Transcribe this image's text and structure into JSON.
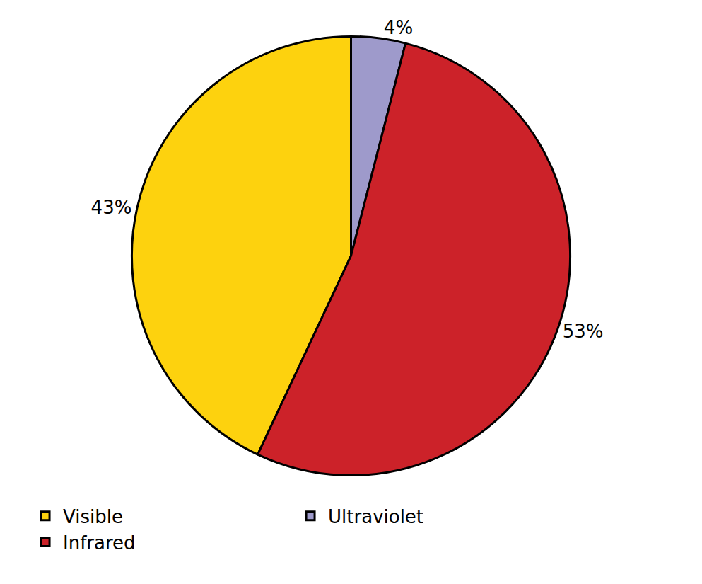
{
  "chart_data": {
    "type": "pie",
    "categories": [
      "Visible",
      "Ultraviolet",
      "Infrared"
    ],
    "values": [
      43,
      4,
      53
    ],
    "value_labels": [
      "43%",
      "4%",
      "53%"
    ],
    "colors": [
      "#fdd20e",
      "#9e9acb",
      "#cc2229"
    ],
    "data_labels": true,
    "legend": "bottom"
  }
}
